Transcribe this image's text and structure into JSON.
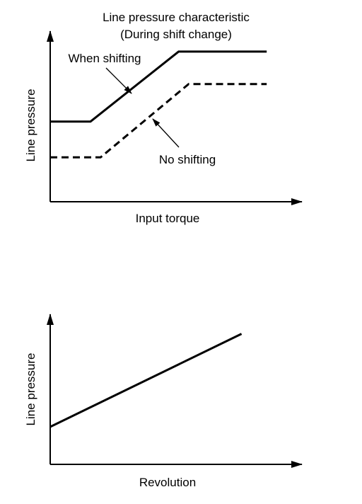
{
  "chart_data": [
    {
      "type": "line",
      "title": "Line pressure characteristic",
      "subtitle": "(During shift change)",
      "xlabel": "Input torque",
      "ylabel": "Line pressure",
      "grid": false,
      "axis_ticks": false,
      "annotation_style": "leader-arrows",
      "series": [
        {
          "name": "When shifting",
          "style": "solid",
          "x": [
            0,
            0.16,
            0.51,
            0.86
          ],
          "y": [
            0.47,
            0.47,
            0.88,
            0.88
          ]
        },
        {
          "name": "No shifting",
          "style": "dashed",
          "x": [
            0,
            0.2,
            0.55,
            0.86
          ],
          "y": [
            0.26,
            0.26,
            0.69,
            0.69
          ]
        }
      ]
    },
    {
      "type": "line",
      "xlabel": "Revolution",
      "ylabel": "Line pressure",
      "grid": false,
      "axis_ticks": false,
      "series": [
        {
          "style": "solid",
          "x": [
            0,
            0.76
          ],
          "y": [
            0.25,
            0.87
          ]
        }
      ]
    }
  ],
  "colors": {
    "ink": "#000000",
    "background": "#ffffff"
  }
}
